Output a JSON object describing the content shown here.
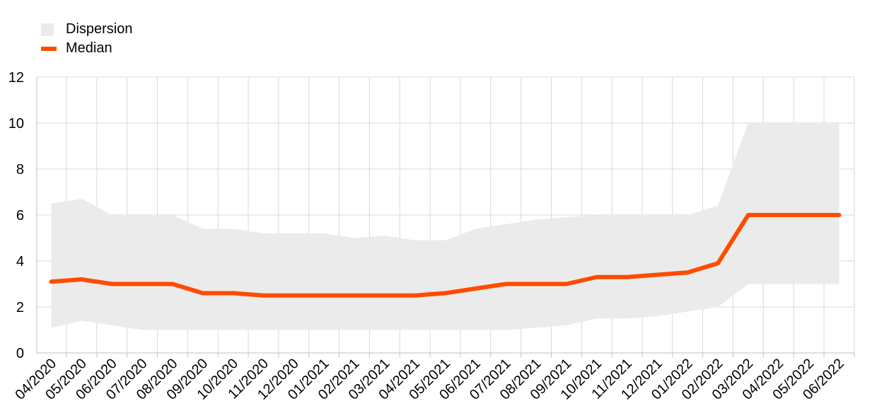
{
  "legend": {
    "dispersion_label": "Dispersion",
    "median_label": "Median"
  },
  "colors": {
    "dispersion": "#ebebeb",
    "median": "#ff4b00",
    "grid": "#d9d9d9",
    "axis": "#bfbfbf"
  },
  "chart_data": {
    "type": "area",
    "grid": true,
    "legend_position": "top-left",
    "ylim": [
      0,
      12
    ],
    "yticks": [
      0,
      2,
      4,
      6,
      8,
      10,
      12
    ],
    "categories": [
      "04/2020",
      "05/2020",
      "06/2020",
      "07/2020",
      "08/2020",
      "09/2020",
      "10/2020",
      "11/2020",
      "12/2020",
      "01/2021",
      "02/2021",
      "03/2021",
      "04/2021",
      "05/2021",
      "06/2021",
      "07/2021",
      "08/2021",
      "09/2021",
      "10/2021",
      "11/2021",
      "12/2021",
      "01/2022",
      "02/2022",
      "03/2022",
      "04/2022",
      "05/2022",
      "06/2022"
    ],
    "series": [
      {
        "name": "Dispersion",
        "kind": "band",
        "low": [
          1.1,
          1.4,
          1.2,
          1.0,
          1.0,
          1.0,
          1.0,
          1.0,
          1.0,
          1.0,
          1.0,
          1.0,
          1.0,
          1.0,
          1.0,
          1.0,
          1.1,
          1.2,
          1.5,
          1.5,
          1.6,
          1.8,
          2.0,
          3.0,
          3.0,
          3.0,
          3.0
        ],
        "high": [
          6.5,
          6.7,
          6.0,
          6.0,
          6.0,
          5.4,
          5.4,
          5.2,
          5.2,
          5.2,
          5.0,
          5.1,
          4.9,
          4.9,
          5.4,
          5.6,
          5.8,
          5.9,
          6.0,
          6.0,
          6.0,
          6.0,
          6.4,
          10.0,
          10.0,
          10.0,
          10.0
        ]
      },
      {
        "name": "Median",
        "kind": "line",
        "values": [
          3.1,
          3.2,
          3.0,
          3.0,
          3.0,
          2.6,
          2.6,
          2.5,
          2.5,
          2.5,
          2.5,
          2.5,
          2.5,
          2.6,
          2.8,
          3.0,
          3.0,
          3.0,
          3.3,
          3.3,
          3.4,
          3.5,
          3.9,
          6.0,
          6.0,
          6.0,
          6.0
        ]
      }
    ]
  }
}
